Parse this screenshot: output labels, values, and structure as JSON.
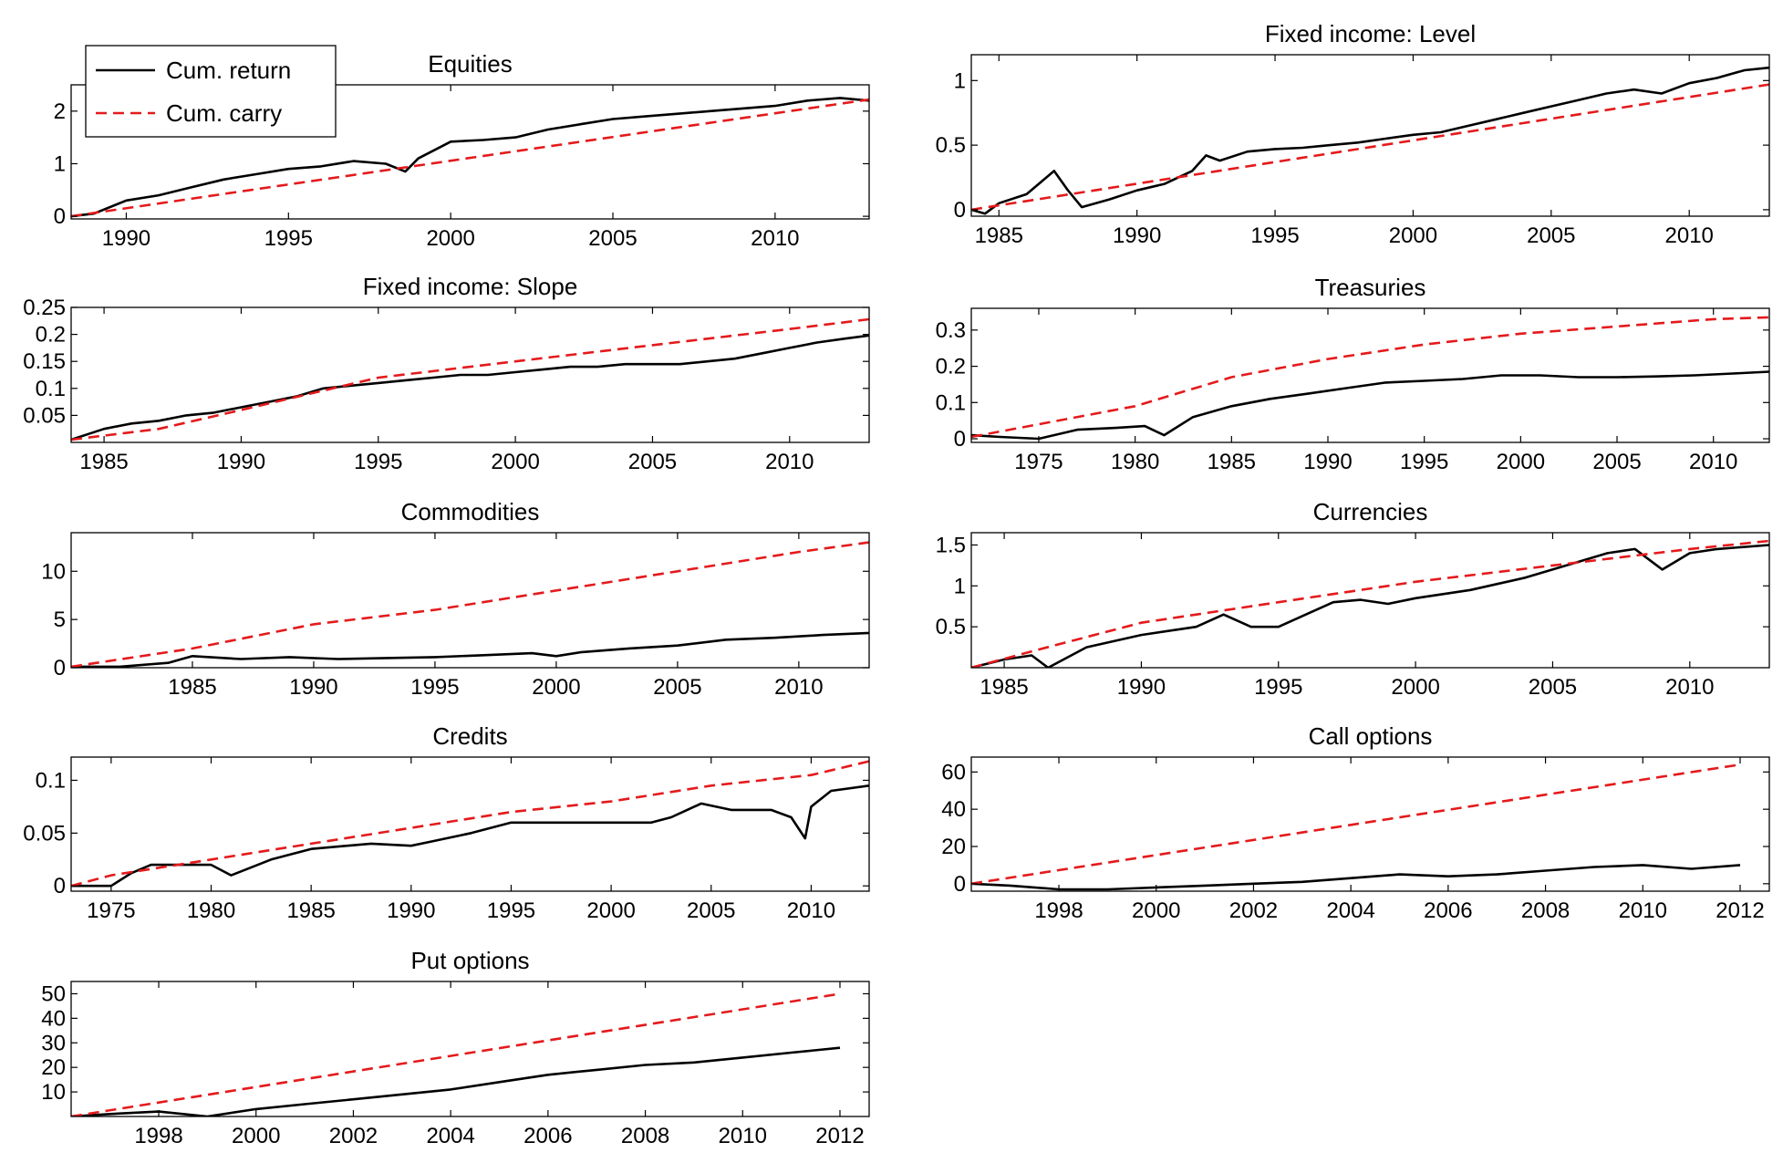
{
  "legend": {
    "entries": [
      {
        "name": "Cum. return",
        "color": "#000000",
        "dash": "solid"
      },
      {
        "name": "Cum. carry",
        "color": "#e41a1c",
        "dash": "dashed"
      }
    ],
    "placement": "top-left"
  },
  "chart_data": [
    {
      "type": "line",
      "title": "Equities",
      "xlim": [
        1988.3,
        2012.9
      ],
      "ylim": [
        -0.05,
        2.5
      ],
      "xticks": [
        1990,
        1995,
        2000,
        2005,
        2010
      ],
      "yticks": [
        0,
        1,
        2
      ],
      "series": [
        {
          "name": "Cum. return",
          "x": [
            1988.3,
            1989,
            1990,
            1991,
            1992,
            1993,
            1994,
            1995,
            1996,
            1997,
            1998,
            1998.6,
            1999,
            2000,
            2001,
            2002,
            2003,
            2004,
            2005,
            2006,
            2007,
            2008,
            2009,
            2010,
            2011,
            2012,
            2012.9
          ],
          "y": [
            0,
            0.05,
            0.3,
            0.4,
            0.55,
            0.7,
            0.8,
            0.9,
            0.95,
            1.05,
            1.0,
            0.85,
            1.1,
            1.42,
            1.45,
            1.5,
            1.65,
            1.75,
            1.85,
            1.9,
            1.95,
            2.0,
            2.05,
            2.1,
            2.2,
            2.25,
            2.2
          ]
        },
        {
          "name": "Cum. carry",
          "x": [
            1988.3,
            2012.9
          ],
          "y": [
            0,
            2.22
          ]
        }
      ]
    },
    {
      "type": "line",
      "title": "Fixed income: Level",
      "xlim": [
        1984,
        2012.9
      ],
      "ylim": [
        -0.05,
        1.2
      ],
      "xticks": [
        1985,
        1990,
        1995,
        2000,
        2005,
        2010
      ],
      "yticks": [
        0,
        0.5,
        1
      ],
      "series": [
        {
          "name": "Cum. return",
          "x": [
            1984,
            1984.5,
            1985,
            1986,
            1987,
            1987.5,
            1988,
            1989,
            1990,
            1991,
            1992,
            1992.5,
            1993,
            1994,
            1995,
            1996,
            1997,
            1998,
            1999,
            2000,
            2001,
            2002,
            2003,
            2004,
            2005,
            2006,
            2007,
            2008,
            2009,
            2010,
            2011,
            2012,
            2012.9
          ],
          "y": [
            0,
            -0.03,
            0.05,
            0.12,
            0.3,
            0.15,
            0.02,
            0.08,
            0.15,
            0.2,
            0.3,
            0.42,
            0.38,
            0.45,
            0.47,
            0.48,
            0.5,
            0.52,
            0.55,
            0.58,
            0.6,
            0.65,
            0.7,
            0.75,
            0.8,
            0.85,
            0.9,
            0.93,
            0.9,
            0.98,
            1.02,
            1.08,
            1.1
          ]
        },
        {
          "name": "Cum. carry",
          "x": [
            1984,
            2012.9
          ],
          "y": [
            0,
            0.97
          ]
        }
      ]
    },
    {
      "type": "line",
      "title": "Fixed income: Slope",
      "xlim": [
        1983.8,
        2012.9
      ],
      "ylim": [
        0,
        0.25
      ],
      "xticks": [
        1985,
        1990,
        1995,
        2000,
        2005,
        2010
      ],
      "yticks": [
        0.05,
        0.1,
        0.15,
        0.2,
        0.25
      ],
      "series": [
        {
          "name": "Cum. return",
          "x": [
            1983.8,
            1985,
            1986,
            1987,
            1988,
            1989,
            1990,
            1991,
            1992,
            1993,
            1994,
            1995,
            1996,
            1997,
            1998,
            1999,
            2000,
            2001,
            2002,
            2003,
            2004,
            2005,
            2006,
            2007,
            2008,
            2009,
            2010,
            2011,
            2012,
            2012.9
          ],
          "y": [
            0.005,
            0.025,
            0.035,
            0.04,
            0.05,
            0.055,
            0.065,
            0.075,
            0.085,
            0.1,
            0.105,
            0.11,
            0.115,
            0.12,
            0.125,
            0.125,
            0.13,
            0.135,
            0.14,
            0.14,
            0.145,
            0.145,
            0.145,
            0.15,
            0.155,
            0.165,
            0.175,
            0.185,
            0.192,
            0.198
          ]
        },
        {
          "name": "Cum. carry",
          "x": [
            1983.8,
            1987,
            1990,
            1995,
            2000,
            2005,
            2010,
            2012.9
          ],
          "y": [
            0.005,
            0.025,
            0.06,
            0.12,
            0.15,
            0.18,
            0.21,
            0.228
          ]
        }
      ]
    },
    {
      "type": "line",
      "title": "Treasuries",
      "xlim": [
        1971.5,
        2012.9
      ],
      "ylim": [
        -0.01,
        0.36
      ],
      "xticks": [
        1975,
        1980,
        1985,
        1990,
        1995,
        2000,
        2005,
        2010
      ],
      "yticks": [
        0,
        0.1,
        0.2,
        0.3
      ],
      "series": [
        {
          "name": "Cum. return",
          "x": [
            1971.5,
            1973,
            1975,
            1977,
            1979,
            1980.5,
            1981.5,
            1983,
            1985,
            1987,
            1989,
            1991,
            1993,
            1995,
            1997,
            1999,
            2001,
            2003,
            2005,
            2007,
            2009,
            2011,
            2012.9
          ],
          "y": [
            0.01,
            0.005,
            0.0,
            0.025,
            0.03,
            0.035,
            0.01,
            0.06,
            0.09,
            0.11,
            0.125,
            0.14,
            0.155,
            0.16,
            0.165,
            0.175,
            0.175,
            0.17,
            0.17,
            0.172,
            0.175,
            0.18,
            0.185
          ]
        },
        {
          "name": "Cum. carry",
          "x": [
            1971.5,
            1975,
            1980,
            1985,
            1990,
            1995,
            2000,
            2005,
            2010,
            2012.9
          ],
          "y": [
            0.005,
            0.04,
            0.09,
            0.17,
            0.22,
            0.26,
            0.29,
            0.31,
            0.33,
            0.335
          ]
        }
      ]
    },
    {
      "type": "line",
      "title": "Commodities",
      "xlim": [
        1980,
        2012.9
      ],
      "ylim": [
        0,
        14
      ],
      "xticks": [
        1985,
        1990,
        1995,
        2000,
        2005,
        2010
      ],
      "yticks": [
        0,
        5,
        10
      ],
      "series": [
        {
          "name": "Cum. return",
          "x": [
            1980,
            1982,
            1984,
            1985,
            1987,
            1989,
            1991,
            1993,
            1995,
            1997,
            1999,
            2000,
            2001,
            2003,
            2005,
            2007,
            2009,
            2011,
            2012.9
          ],
          "y": [
            0.1,
            0.1,
            0.5,
            1.2,
            0.9,
            1.1,
            0.9,
            1.0,
            1.1,
            1.3,
            1.5,
            1.2,
            1.6,
            2.0,
            2.3,
            2.9,
            3.1,
            3.4,
            3.6
          ]
        },
        {
          "name": "Cum. carry",
          "x": [
            1980,
            1985,
            1990,
            1995,
            2000,
            2005,
            2010,
            2012.9
          ],
          "y": [
            0.1,
            2.0,
            4.5,
            6.0,
            8.0,
            10.0,
            12.0,
            13.0
          ]
        }
      ]
    },
    {
      "type": "line",
      "title": "Currencies",
      "xlim": [
        1983.8,
        2012.9
      ],
      "ylim": [
        0,
        1.65
      ],
      "xticks": [
        1985,
        1990,
        1995,
        2000,
        2005,
        2010
      ],
      "yticks": [
        0.5,
        1,
        1.5
      ],
      "series": [
        {
          "name": "Cum. return",
          "x": [
            1983.8,
            1985,
            1986,
            1986.6,
            1988,
            1990,
            1992,
            1993,
            1994,
            1995,
            1996,
            1997,
            1998,
            1999,
            2000,
            2002,
            2004,
            2006,
            2007,
            2008,
            2009,
            2010,
            2011,
            2012.9
          ],
          "y": [
            0.0,
            0.1,
            0.15,
            0.0,
            0.25,
            0.4,
            0.5,
            0.65,
            0.5,
            0.5,
            0.65,
            0.8,
            0.83,
            0.78,
            0.85,
            0.95,
            1.1,
            1.3,
            1.4,
            1.45,
            1.2,
            1.4,
            1.45,
            1.5
          ]
        },
        {
          "name": "Cum. carry",
          "x": [
            1983.8,
            1986,
            1990,
            1993,
            1995,
            2000,
            2005,
            2010,
            2012.9
          ],
          "y": [
            0.0,
            0.2,
            0.55,
            0.7,
            0.8,
            1.05,
            1.25,
            1.45,
            1.55
          ]
        }
      ]
    },
    {
      "type": "line",
      "title": "Credits",
      "xlim": [
        1973,
        2012.9
      ],
      "ylim": [
        -0.005,
        0.122
      ],
      "xticks": [
        1975,
        1980,
        1985,
        1990,
        1995,
        2000,
        2005,
        2010
      ],
      "yticks": [
        0,
        0.05,
        0.1
      ],
      "series": [
        {
          "name": "Cum. return",
          "x": [
            1973,
            1975,
            1976,
            1977,
            1980,
            1981,
            1983,
            1985,
            1988,
            1990,
            1991,
            1993,
            1995,
            1997,
            2000,
            2002,
            2003,
            2004.5,
            2006,
            2008,
            2009,
            2009.7,
            2010,
            2011,
            2012.9
          ],
          "y": [
            0.0,
            0.0,
            0.012,
            0.02,
            0.02,
            0.01,
            0.025,
            0.035,
            0.04,
            0.038,
            0.042,
            0.05,
            0.06,
            0.06,
            0.06,
            0.06,
            0.065,
            0.078,
            0.072,
            0.072,
            0.065,
            0.045,
            0.075,
            0.09,
            0.095
          ]
        },
        {
          "name": "Cum. carry",
          "x": [
            1973,
            1975,
            1980,
            1985,
            1990,
            1995,
            2000,
            2005,
            2010,
            2012.9
          ],
          "y": [
            0.0,
            0.01,
            0.025,
            0.04,
            0.055,
            0.07,
            0.08,
            0.095,
            0.105,
            0.118
          ]
        }
      ]
    },
    {
      "type": "line",
      "title": "Call options",
      "xlim": [
        1996.2,
        2012.6
      ],
      "ylim": [
        -4,
        68
      ],
      "xticks": [
        1998,
        2000,
        2002,
        2004,
        2006,
        2008,
        2010,
        2012
      ],
      "yticks": [
        0,
        20,
        40,
        60
      ],
      "series": [
        {
          "name": "Cum. return",
          "x": [
            1996.2,
            1997,
            1998,
            1999,
            2000,
            2001,
            2002,
            2003,
            2004,
            2005,
            2006,
            2007,
            2008,
            2009,
            2010,
            2011,
            2012
          ],
          "y": [
            0,
            -1,
            -3,
            -3,
            -2,
            -1,
            0,
            1,
            3,
            5,
            4,
            5,
            7,
            9,
            10,
            8,
            10
          ]
        },
        {
          "name": "Cum. carry",
          "x": [
            1996.2,
            2012
          ],
          "y": [
            0,
            64
          ]
        }
      ]
    },
    {
      "type": "line",
      "title": "Put options",
      "xlim": [
        1996.2,
        2012.6
      ],
      "ylim": [
        0,
        55
      ],
      "xticks": [
        1998,
        2000,
        2002,
        2004,
        2006,
        2008,
        2010,
        2012
      ],
      "yticks": [
        10,
        20,
        30,
        40,
        50
      ],
      "series": [
        {
          "name": "Cum. return",
          "x": [
            1996.2,
            1997,
            1998,
            1999,
            2000,
            2001,
            2002,
            2003,
            2004,
            2005,
            2006,
            2007,
            2008,
            2009,
            2010,
            2011,
            2012
          ],
          "y": [
            0,
            1,
            2,
            0,
            3,
            5,
            7,
            9,
            11,
            14,
            17,
            19,
            21,
            22,
            24,
            26,
            28
          ]
        },
        {
          "name": "Cum. carry",
          "x": [
            1996.2,
            2012
          ],
          "y": [
            0,
            50
          ]
        }
      ]
    }
  ]
}
